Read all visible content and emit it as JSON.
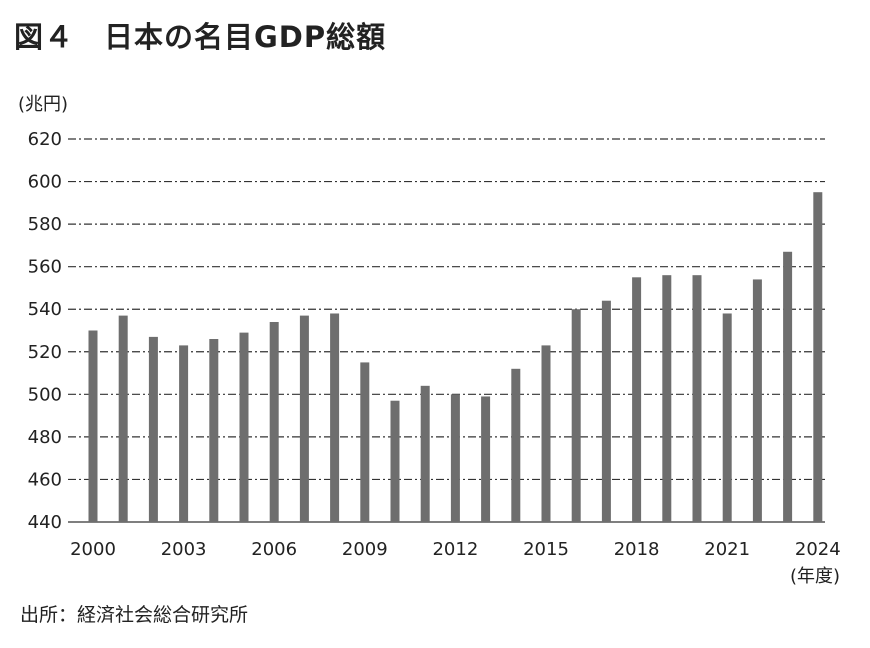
{
  "title": "図４　日本の名目GDP総額",
  "source": "出所：経済社会総合研究所",
  "chart_data": {
    "type": "bar",
    "title": "図４　日本の名目GDP総額",
    "ylabel": "(兆円)",
    "xlabel": "(年度)",
    "ylim": [
      440,
      620
    ],
    "yticks": [
      440,
      460,
      480,
      500,
      520,
      540,
      560,
      580,
      600,
      620
    ],
    "xtick_labels": [
      "2000",
      "2003",
      "2006",
      "2009",
      "2012",
      "2015",
      "2018",
      "2021",
      "2024"
    ],
    "grid": true,
    "bar_color": "#6e6e6e",
    "categories": [
      2000,
      2001,
      2002,
      2003,
      2004,
      2005,
      2006,
      2007,
      2008,
      2009,
      2010,
      2011,
      2012,
      2013,
      2014,
      2015,
      2016,
      2017,
      2018,
      2019,
      2020,
      2021,
      2022,
      2023,
      2024
    ],
    "values": [
      530,
      537,
      527,
      523,
      526,
      529,
      534,
      537,
      538,
      515,
      497,
      504,
      500,
      499,
      512,
      523,
      540,
      544,
      555,
      556,
      556,
      538,
      554,
      567,
      595
    ]
  }
}
